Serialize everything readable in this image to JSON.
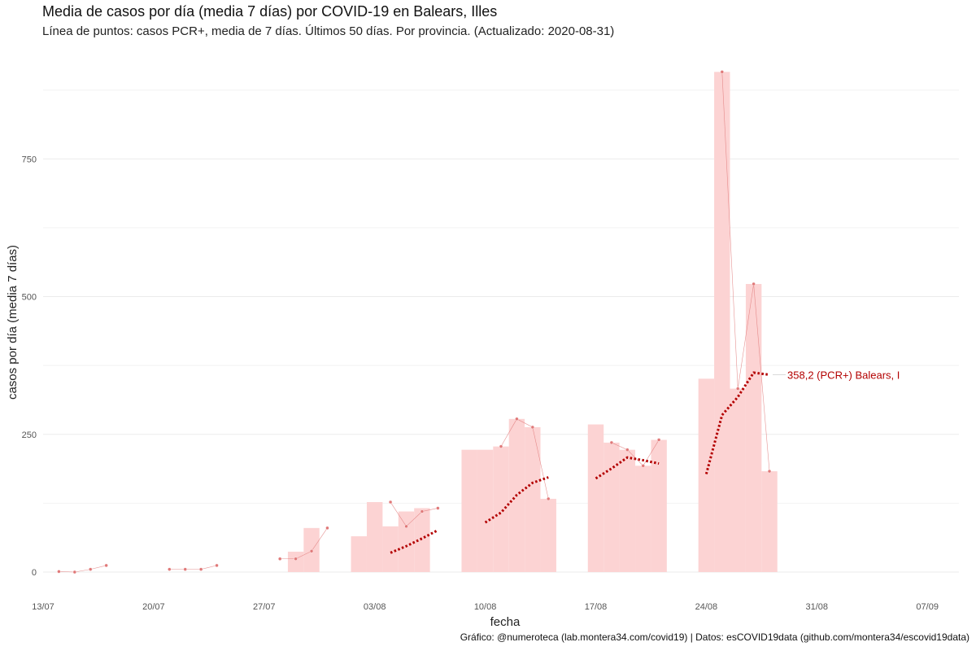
{
  "chart_data": {
    "type": "bar",
    "title": "Media de casos por día (media 7 días) por COVID-19 en Balears, Illes",
    "subtitle": "Línea de puntos: casos PCR+, media de 7 días. Últimos 50 días. Por provincia. (Actualizado: 2020-08-31)",
    "xlabel": "fecha",
    "ylabel": "casos por día (media 7 días)",
    "caption": "Gráfico: @numeroteca (lab.montera34.com/covid19) | Datos: esCOVID19data (github.com/montera34/escovid19data)",
    "x_range": [
      "2020-07-13",
      "2020-09-09"
    ],
    "ylim": [
      0,
      910
    ],
    "y_ticks": [
      0,
      250,
      500,
      750
    ],
    "x_ticks": [
      "13/07",
      "20/07",
      "27/07",
      "03/08",
      "10/08",
      "17/08",
      "24/08",
      "31/08",
      "07/09"
    ],
    "x_tick_dates": [
      "2020-07-13",
      "2020-07-20",
      "2020-07-27",
      "2020-08-03",
      "2020-08-10",
      "2020-08-17",
      "2020-08-24",
      "2020-08-31",
      "2020-09-07"
    ],
    "grid": true,
    "colors": {
      "bars": "#fcd3d3",
      "daily": "#e07878",
      "avg": "#b30000",
      "grid": "#ebebeb"
    },
    "bars": [
      {
        "date": "2020-07-29",
        "value": 37
      },
      {
        "date": "2020-07-30",
        "value": 80
      },
      {
        "date": "2020-08-02",
        "value": 65
      },
      {
        "date": "2020-08-03",
        "value": 127
      },
      {
        "date": "2020-08-04",
        "value": 83
      },
      {
        "date": "2020-08-05",
        "value": 110
      },
      {
        "date": "2020-08-06",
        "value": 116
      },
      {
        "date": "2020-08-09",
        "value": 222
      },
      {
        "date": "2020-08-10",
        "value": 222
      },
      {
        "date": "2020-08-11",
        "value": 228
      },
      {
        "date": "2020-08-12",
        "value": 278
      },
      {
        "date": "2020-08-13",
        "value": 263
      },
      {
        "date": "2020-08-14",
        "value": 133
      },
      {
        "date": "2020-08-17",
        "value": 268
      },
      {
        "date": "2020-08-18",
        "value": 235
      },
      {
        "date": "2020-08-19",
        "value": 222
      },
      {
        "date": "2020-08-20",
        "value": 193
      },
      {
        "date": "2020-08-21",
        "value": 240
      },
      {
        "date": "2020-08-24",
        "value": 351
      },
      {
        "date": "2020-08-25",
        "value": 908
      },
      {
        "date": "2020-08-26",
        "value": 333
      },
      {
        "date": "2020-08-27",
        "value": 523
      },
      {
        "date": "2020-08-28",
        "value": 183
      }
    ],
    "series": [
      {
        "kind": "daily",
        "points": [
          {
            "date": "2020-07-14",
            "value": 1
          },
          {
            "date": "2020-07-15",
            "value": 0
          },
          {
            "date": "2020-07-16",
            "value": 5
          },
          {
            "date": "2020-07-17",
            "value": 12
          },
          {
            "date": "2020-07-21",
            "value": 5
          },
          {
            "date": "2020-07-22",
            "value": 5
          },
          {
            "date": "2020-07-23",
            "value": 5
          },
          {
            "date": "2020-07-24",
            "value": 12
          },
          {
            "date": "2020-07-28",
            "value": 24
          },
          {
            "date": "2020-07-29",
            "value": 24
          },
          {
            "date": "2020-07-30",
            "value": 38
          },
          {
            "date": "2020-07-31",
            "value": 80
          },
          {
            "date": "2020-08-04",
            "value": 127
          },
          {
            "date": "2020-08-05",
            "value": 83
          },
          {
            "date": "2020-08-06",
            "value": 110
          },
          {
            "date": "2020-08-07",
            "value": 116
          },
          {
            "date": "2020-08-11",
            "value": 228
          },
          {
            "date": "2020-08-12",
            "value": 278
          },
          {
            "date": "2020-08-13",
            "value": 263
          },
          {
            "date": "2020-08-14",
            "value": 133
          },
          {
            "date": "2020-08-18",
            "value": 235
          },
          {
            "date": "2020-08-19",
            "value": 222
          },
          {
            "date": "2020-08-20",
            "value": 193
          },
          {
            "date": "2020-08-21",
            "value": 240
          },
          {
            "date": "2020-08-25",
            "value": 908
          },
          {
            "date": "2020-08-26",
            "value": 333
          },
          {
            "date": "2020-08-27",
            "value": 523
          },
          {
            "date": "2020-08-28",
            "value": 183
          }
        ]
      },
      {
        "kind": "avg",
        "points": [
          {
            "date": "2020-08-04",
            "value": 35
          },
          {
            "date": "2020-08-05",
            "value": 47
          },
          {
            "date": "2020-08-06",
            "value": 61
          },
          {
            "date": "2020-08-07",
            "value": 76
          },
          {
            "date": "2020-08-10",
            "value": 90
          },
          {
            "date": "2020-08-11",
            "value": 108
          },
          {
            "date": "2020-08-12",
            "value": 140
          },
          {
            "date": "2020-08-13",
            "value": 162
          },
          {
            "date": "2020-08-14",
            "value": 172
          },
          {
            "date": "2020-08-17",
            "value": 170
          },
          {
            "date": "2020-08-18",
            "value": 188
          },
          {
            "date": "2020-08-19",
            "value": 208
          },
          {
            "date": "2020-08-20",
            "value": 203
          },
          {
            "date": "2020-08-21",
            "value": 197
          },
          {
            "date": "2020-08-24",
            "value": 178
          },
          {
            "date": "2020-08-25",
            "value": 285
          },
          {
            "date": "2020-08-26",
            "value": 318
          },
          {
            "date": "2020-08-27",
            "value": 362
          },
          {
            "date": "2020-08-28",
            "value": 358.2
          }
        ]
      }
    ],
    "annotation": {
      "text": "358,2 (PCR+) Balears, I",
      "date": "2020-08-28",
      "value": 358.2
    }
  }
}
